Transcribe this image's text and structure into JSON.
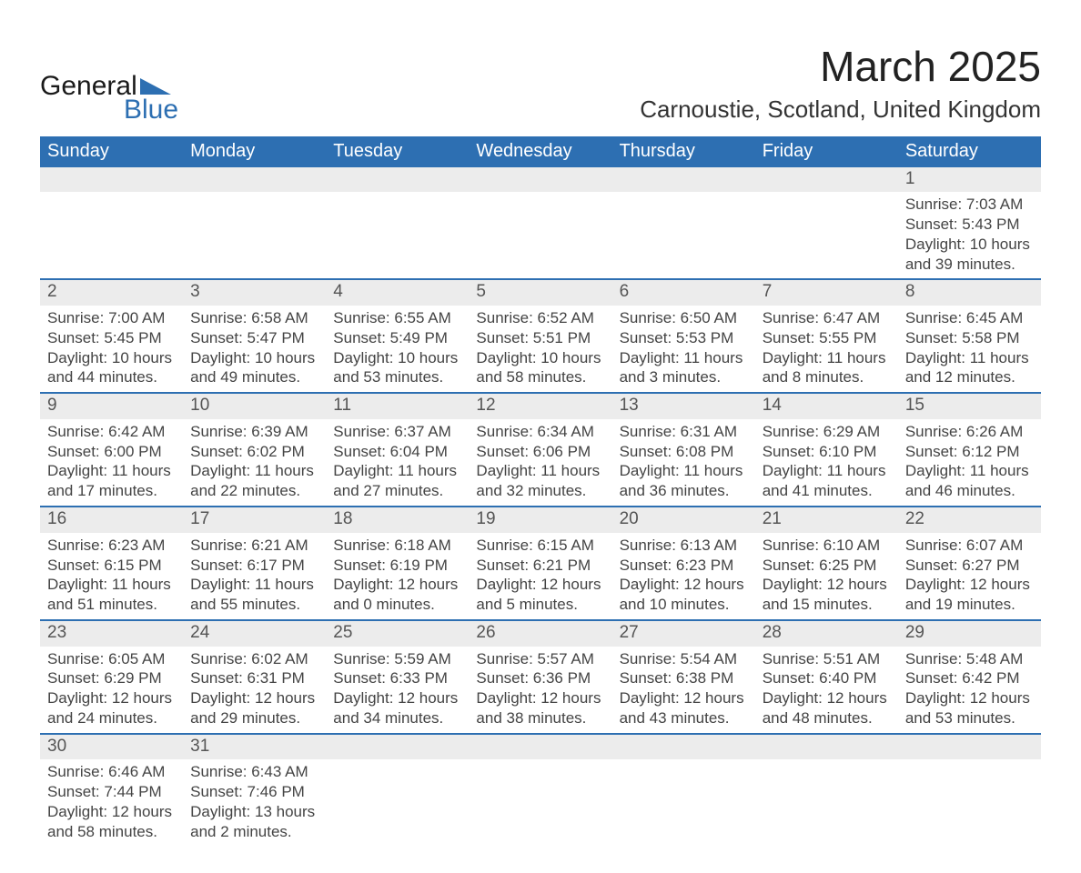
{
  "colors": {
    "header_bg": "#2d6fb2",
    "header_text": "#ffffff",
    "daynum_bg": "#ececec",
    "daynum_text": "#555555",
    "body_text": "#444444",
    "row_border": "#2d6fb2",
    "page_bg": "#ffffff",
    "logo_text": "#1a1a1a",
    "logo_blue": "#2d6fb2"
  },
  "typography": {
    "title_fontsize": 46,
    "location_fontsize": 26,
    "dayheader_fontsize": 20,
    "daynum_fontsize": 19,
    "body_fontsize": 17
  },
  "logo": {
    "line1": "General",
    "line2": "Blue"
  },
  "title": "March 2025",
  "location": "Carnoustie, Scotland, United Kingdom",
  "day_headers": [
    "Sunday",
    "Monday",
    "Tuesday",
    "Wednesday",
    "Thursday",
    "Friday",
    "Saturday"
  ],
  "weeks": [
    [
      null,
      null,
      null,
      null,
      null,
      null,
      {
        "n": "1",
        "sunrise": "Sunrise: 7:03 AM",
        "sunset": "Sunset: 5:43 PM",
        "daylight1": "Daylight: 10 hours",
        "daylight2": "and 39 minutes."
      }
    ],
    [
      {
        "n": "2",
        "sunrise": "Sunrise: 7:00 AM",
        "sunset": "Sunset: 5:45 PM",
        "daylight1": "Daylight: 10 hours",
        "daylight2": "and 44 minutes."
      },
      {
        "n": "3",
        "sunrise": "Sunrise: 6:58 AM",
        "sunset": "Sunset: 5:47 PM",
        "daylight1": "Daylight: 10 hours",
        "daylight2": "and 49 minutes."
      },
      {
        "n": "4",
        "sunrise": "Sunrise: 6:55 AM",
        "sunset": "Sunset: 5:49 PM",
        "daylight1": "Daylight: 10 hours",
        "daylight2": "and 53 minutes."
      },
      {
        "n": "5",
        "sunrise": "Sunrise: 6:52 AM",
        "sunset": "Sunset: 5:51 PM",
        "daylight1": "Daylight: 10 hours",
        "daylight2": "and 58 minutes."
      },
      {
        "n": "6",
        "sunrise": "Sunrise: 6:50 AM",
        "sunset": "Sunset: 5:53 PM",
        "daylight1": "Daylight: 11 hours",
        "daylight2": "and 3 minutes."
      },
      {
        "n": "7",
        "sunrise": "Sunrise: 6:47 AM",
        "sunset": "Sunset: 5:55 PM",
        "daylight1": "Daylight: 11 hours",
        "daylight2": "and 8 minutes."
      },
      {
        "n": "8",
        "sunrise": "Sunrise: 6:45 AM",
        "sunset": "Sunset: 5:58 PM",
        "daylight1": "Daylight: 11 hours",
        "daylight2": "and 12 minutes."
      }
    ],
    [
      {
        "n": "9",
        "sunrise": "Sunrise: 6:42 AM",
        "sunset": "Sunset: 6:00 PM",
        "daylight1": "Daylight: 11 hours",
        "daylight2": "and 17 minutes."
      },
      {
        "n": "10",
        "sunrise": "Sunrise: 6:39 AM",
        "sunset": "Sunset: 6:02 PM",
        "daylight1": "Daylight: 11 hours",
        "daylight2": "and 22 minutes."
      },
      {
        "n": "11",
        "sunrise": "Sunrise: 6:37 AM",
        "sunset": "Sunset: 6:04 PM",
        "daylight1": "Daylight: 11 hours",
        "daylight2": "and 27 minutes."
      },
      {
        "n": "12",
        "sunrise": "Sunrise: 6:34 AM",
        "sunset": "Sunset: 6:06 PM",
        "daylight1": "Daylight: 11 hours",
        "daylight2": "and 32 minutes."
      },
      {
        "n": "13",
        "sunrise": "Sunrise: 6:31 AM",
        "sunset": "Sunset: 6:08 PM",
        "daylight1": "Daylight: 11 hours",
        "daylight2": "and 36 minutes."
      },
      {
        "n": "14",
        "sunrise": "Sunrise: 6:29 AM",
        "sunset": "Sunset: 6:10 PM",
        "daylight1": "Daylight: 11 hours",
        "daylight2": "and 41 minutes."
      },
      {
        "n": "15",
        "sunrise": "Sunrise: 6:26 AM",
        "sunset": "Sunset: 6:12 PM",
        "daylight1": "Daylight: 11 hours",
        "daylight2": "and 46 minutes."
      }
    ],
    [
      {
        "n": "16",
        "sunrise": "Sunrise: 6:23 AM",
        "sunset": "Sunset: 6:15 PM",
        "daylight1": "Daylight: 11 hours",
        "daylight2": "and 51 minutes."
      },
      {
        "n": "17",
        "sunrise": "Sunrise: 6:21 AM",
        "sunset": "Sunset: 6:17 PM",
        "daylight1": "Daylight: 11 hours",
        "daylight2": "and 55 minutes."
      },
      {
        "n": "18",
        "sunrise": "Sunrise: 6:18 AM",
        "sunset": "Sunset: 6:19 PM",
        "daylight1": "Daylight: 12 hours",
        "daylight2": "and 0 minutes."
      },
      {
        "n": "19",
        "sunrise": "Sunrise: 6:15 AM",
        "sunset": "Sunset: 6:21 PM",
        "daylight1": "Daylight: 12 hours",
        "daylight2": "and 5 minutes."
      },
      {
        "n": "20",
        "sunrise": "Sunrise: 6:13 AM",
        "sunset": "Sunset: 6:23 PM",
        "daylight1": "Daylight: 12 hours",
        "daylight2": "and 10 minutes."
      },
      {
        "n": "21",
        "sunrise": "Sunrise: 6:10 AM",
        "sunset": "Sunset: 6:25 PM",
        "daylight1": "Daylight: 12 hours",
        "daylight2": "and 15 minutes."
      },
      {
        "n": "22",
        "sunrise": "Sunrise: 6:07 AM",
        "sunset": "Sunset: 6:27 PM",
        "daylight1": "Daylight: 12 hours",
        "daylight2": "and 19 minutes."
      }
    ],
    [
      {
        "n": "23",
        "sunrise": "Sunrise: 6:05 AM",
        "sunset": "Sunset: 6:29 PM",
        "daylight1": "Daylight: 12 hours",
        "daylight2": "and 24 minutes."
      },
      {
        "n": "24",
        "sunrise": "Sunrise: 6:02 AM",
        "sunset": "Sunset: 6:31 PM",
        "daylight1": "Daylight: 12 hours",
        "daylight2": "and 29 minutes."
      },
      {
        "n": "25",
        "sunrise": "Sunrise: 5:59 AM",
        "sunset": "Sunset: 6:33 PM",
        "daylight1": "Daylight: 12 hours",
        "daylight2": "and 34 minutes."
      },
      {
        "n": "26",
        "sunrise": "Sunrise: 5:57 AM",
        "sunset": "Sunset: 6:36 PM",
        "daylight1": "Daylight: 12 hours",
        "daylight2": "and 38 minutes."
      },
      {
        "n": "27",
        "sunrise": "Sunrise: 5:54 AM",
        "sunset": "Sunset: 6:38 PM",
        "daylight1": "Daylight: 12 hours",
        "daylight2": "and 43 minutes."
      },
      {
        "n": "28",
        "sunrise": "Sunrise: 5:51 AM",
        "sunset": "Sunset: 6:40 PM",
        "daylight1": "Daylight: 12 hours",
        "daylight2": "and 48 minutes."
      },
      {
        "n": "29",
        "sunrise": "Sunrise: 5:48 AM",
        "sunset": "Sunset: 6:42 PM",
        "daylight1": "Daylight: 12 hours",
        "daylight2": "and 53 minutes."
      }
    ],
    [
      {
        "n": "30",
        "sunrise": "Sunrise: 6:46 AM",
        "sunset": "Sunset: 7:44 PM",
        "daylight1": "Daylight: 12 hours",
        "daylight2": "and 58 minutes."
      },
      {
        "n": "31",
        "sunrise": "Sunrise: 6:43 AM",
        "sunset": "Sunset: 7:46 PM",
        "daylight1": "Daylight: 13 hours",
        "daylight2": "and 2 minutes."
      },
      null,
      null,
      null,
      null,
      null
    ]
  ]
}
